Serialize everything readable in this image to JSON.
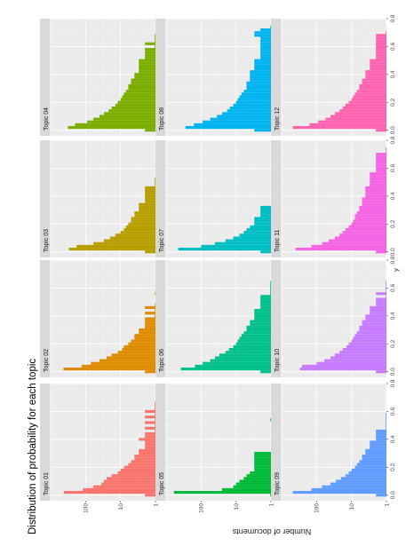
{
  "chart_data": {
    "type": "bar",
    "orientation": "rotated-90",
    "title": "Distribution of probability for each topic",
    "xlabel": "y",
    "ylabel": "Number of documents",
    "x_ticks": [
      "0.0",
      "0.2",
      "0.4",
      "0.6",
      "0.8"
    ],
    "x_tick_values": [
      0.0,
      0.2,
      0.4,
      0.6,
      0.8
    ],
    "y_ticks": [
      "1",
      "10",
      "100"
    ],
    "y_tick_values": [
      1,
      10,
      100
    ],
    "y_scale": "log10",
    "ylim": [
      1,
      1000
    ],
    "xlim": [
      -0.04,
      0.8
    ],
    "bin_width": 0.02,
    "facet_layout": {
      "columns": 4,
      "rows": 3
    },
    "grid": true,
    "legend": "none",
    "panels": [
      {
        "label": "Topic 01",
        "color": "#F8766D",
        "values": [
          2,
          420,
          120,
          60,
          35,
          30,
          25,
          18,
          12,
          10,
          8,
          6,
          5,
          4,
          4,
          3,
          3,
          2,
          2,
          2,
          3,
          2,
          2,
          1,
          2,
          1,
          2,
          1,
          2,
          1,
          2,
          1,
          1,
          1
        ]
      },
      {
        "label": "Topic 02",
        "color": "#DE8C00",
        "values": [
          2,
          430,
          130,
          70,
          40,
          25,
          18,
          12,
          9,
          8,
          6,
          5,
          4,
          4,
          3,
          3,
          2,
          2,
          2,
          2,
          1,
          2,
          1,
          2,
          1,
          0,
          0,
          0,
          1
        ]
      },
      {
        "label": "Topic 03",
        "color": "#B79F00",
        "values": [
          2,
          300,
          180,
          60,
          30,
          20,
          14,
          10,
          8,
          7,
          6,
          5,
          5,
          4,
          4,
          3,
          3,
          3,
          2,
          2,
          2,
          2,
          2,
          2,
          1,
          1,
          1
        ]
      },
      {
        "label": "Topic 04",
        "color": "#7CAE00",
        "values": [
          2,
          320,
          200,
          90,
          60,
          40,
          30,
          22,
          18,
          14,
          12,
          10,
          9,
          8,
          7,
          6,
          6,
          5,
          5,
          4,
          4,
          3,
          3,
          3,
          3,
          3,
          2,
          2,
          2,
          2,
          1,
          2,
          1,
          1,
          1
        ]
      },
      {
        "label": "Topic 05",
        "color": "#00BA38",
        "values": [
          1,
          600,
          25,
          12,
          10,
          8,
          6,
          5,
          4,
          3,
          3,
          3,
          3,
          3,
          3,
          3,
          0,
          0,
          0,
          0,
          0,
          0,
          0,
          0,
          0,
          0,
          0,
          1
        ]
      },
      {
        "label": "Topic 06",
        "color": "#00C08B",
        "values": [
          2,
          380,
          150,
          90,
          55,
          40,
          30,
          20,
          16,
          12,
          10,
          9,
          8,
          7,
          6,
          5,
          5,
          4,
          4,
          3,
          3,
          3,
          3,
          2,
          2,
          2,
          2,
          2,
          1,
          1,
          1,
          1,
          1
        ]
      },
      {
        "label": "Topic 07",
        "color": "#00BFC4",
        "values": [
          2,
          450,
          100,
          40,
          20,
          12,
          8,
          6,
          5,
          4,
          3,
          3,
          3,
          2,
          2,
          2,
          2
        ]
      },
      {
        "label": "Topic 08",
        "color": "#00B4F0",
        "values": [
          3,
          280,
          160,
          90,
          55,
          35,
          25,
          18,
          15,
          12,
          10,
          9,
          8,
          7,
          6,
          5,
          5,
          5,
          4,
          4,
          4,
          4,
          3,
          3,
          3,
          3,
          2,
          2,
          2,
          2,
          2,
          2,
          2,
          2,
          3,
          3,
          2,
          1
        ]
      },
      {
        "label": "Topic 09",
        "color": "#619CFF",
        "values": [
          2,
          480,
          140,
          70,
          40,
          28,
          20,
          15,
          12,
          10,
          8,
          7,
          6,
          5,
          5,
          4,
          4,
          3,
          3,
          3,
          2,
          2,
          2,
          2,
          1,
          1,
          1,
          1,
          1,
          1
        ]
      },
      {
        "label": "Topic 10",
        "color": "#C77CFF",
        "values": [
          2,
          300,
          260,
          100,
          60,
          40,
          30,
          22,
          18,
          14,
          12,
          10,
          9,
          8,
          7,
          6,
          6,
          5,
          5,
          4,
          4,
          3,
          3,
          3,
          2,
          2,
          2,
          1,
          2,
          1,
          1,
          1,
          1
        ]
      },
      {
        "label": "Topic 11",
        "color": "#F564E3",
        "values": [
          2,
          400,
          140,
          70,
          45,
          30,
          22,
          18,
          15,
          12,
          10,
          9,
          8,
          8,
          7,
          6,
          6,
          5,
          5,
          5,
          4,
          4,
          4,
          4,
          3,
          3,
          3,
          3,
          3,
          2,
          2,
          2,
          2,
          2,
          2,
          2,
          1,
          1
        ]
      },
      {
        "label": "Topic 12",
        "color": "#FF64B0",
        "values": [
          2,
          480,
          160,
          90,
          55,
          40,
          30,
          22,
          18,
          15,
          12,
          10,
          9,
          8,
          7,
          6,
          6,
          5,
          5,
          4,
          4,
          4,
          3,
          3,
          3,
          3,
          2,
          2,
          2,
          2,
          2,
          2,
          2,
          2,
          2,
          1
        ]
      }
    ]
  }
}
